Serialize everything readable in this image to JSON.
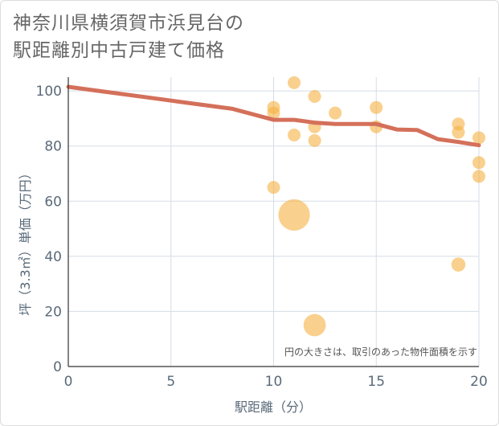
{
  "title_line1": "神奈川県横須賀市浜見台の",
  "title_line2": "駅距離別中古戸建て価格",
  "chart_data": {
    "type": "scatter",
    "title": "神奈川県横須賀市浜見台の駅距離別中古戸建て価格",
    "xlabel": "駅距離（分）",
    "ylabel": "坪（3.3㎡）単価（万円）",
    "xlim": [
      0,
      20
    ],
    "ylim": [
      0,
      105
    ],
    "xticks": [
      0,
      5,
      10,
      15,
      20
    ],
    "yticks": [
      0,
      20,
      40,
      60,
      80,
      100
    ],
    "xtick_labels": [
      "0",
      "5",
      "10",
      "15",
      "20"
    ],
    "ytick_labels": [
      "0",
      "20",
      "40",
      "60",
      "80",
      "100"
    ],
    "grid": true,
    "note": "円の大きさは、取引のあった物件面積を示す",
    "colors": {
      "bubble": "#f5b041",
      "line": "#d4705a",
      "grid": "#d5dde5",
      "axis": "#333333"
    },
    "bubbles": [
      {
        "x": 10,
        "y": 94,
        "size": 1
      },
      {
        "x": 10,
        "y": 92,
        "size": 1
      },
      {
        "x": 10,
        "y": 65,
        "size": 1
      },
      {
        "x": 11,
        "y": 103,
        "size": 1
      },
      {
        "x": 11,
        "y": 84,
        "size": 1
      },
      {
        "x": 11,
        "y": 55,
        "size": 6
      },
      {
        "x": 12,
        "y": 98,
        "size": 1
      },
      {
        "x": 12,
        "y": 87,
        "size": 1
      },
      {
        "x": 12,
        "y": 82,
        "size": 1
      },
      {
        "x": 12,
        "y": 15,
        "size": 3
      },
      {
        "x": 13,
        "y": 92,
        "size": 1
      },
      {
        "x": 15,
        "y": 94,
        "size": 1
      },
      {
        "x": 15,
        "y": 87,
        "size": 1
      },
      {
        "x": 19,
        "y": 88,
        "size": 1
      },
      {
        "x": 19,
        "y": 85,
        "size": 1
      },
      {
        "x": 19,
        "y": 37,
        "size": 1.2
      },
      {
        "x": 20,
        "y": 83,
        "size": 1
      },
      {
        "x": 20,
        "y": 74,
        "size": 1
      },
      {
        "x": 20,
        "y": 69,
        "size": 1
      }
    ],
    "trend_line": [
      {
        "x": 0,
        "y": 101.5
      },
      {
        "x": 2,
        "y": 99.5
      },
      {
        "x": 4,
        "y": 97.5
      },
      {
        "x": 6,
        "y": 95.5
      },
      {
        "x": 8,
        "y": 93.5
      },
      {
        "x": 10,
        "y": 89.5
      },
      {
        "x": 11,
        "y": 89.5
      },
      {
        "x": 12,
        "y": 88.5
      },
      {
        "x": 13,
        "y": 88
      },
      {
        "x": 15,
        "y": 88
      },
      {
        "x": 16,
        "y": 86
      },
      {
        "x": 17,
        "y": 85.8
      },
      {
        "x": 18,
        "y": 82.5
      },
      {
        "x": 19,
        "y": 81.5
      },
      {
        "x": 20,
        "y": 80.3
      }
    ]
  }
}
